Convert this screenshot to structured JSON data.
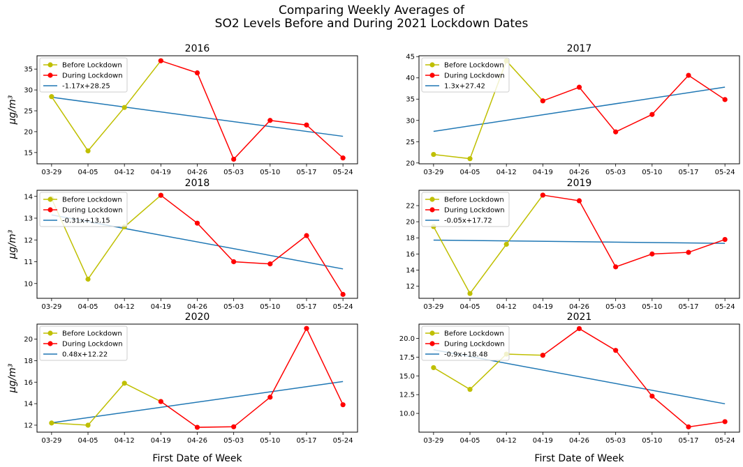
{
  "figure": {
    "suptitle_line1": "Comparing Weekly Averages of",
    "suptitle_line2": "SO2 Levels Before and During 2021 Lockdown Dates",
    "xlabel": "First Date of Week",
    "ylabel": "μg/m³"
  },
  "colors": {
    "before": "#bfbf00",
    "during": "#ff0000",
    "trend": "#1f77b4"
  },
  "chart_data": [
    {
      "type": "line",
      "title": "2016",
      "categories": [
        "03-29",
        "04-05",
        "04-12",
        "04-19",
        "04-26",
        "05-03",
        "05-10",
        "05-17",
        "05-24"
      ],
      "series": [
        {
          "name": "Before Lockdown",
          "x": [
            "03-29",
            "04-05",
            "04-12",
            "04-19"
          ],
          "values": [
            28.4,
            15.4,
            25.8,
            37.0
          ]
        },
        {
          "name": "During Lockdown",
          "x": [
            "04-19",
            "04-26",
            "05-03",
            "05-10",
            "05-17",
            "05-24"
          ],
          "values": [
            37.0,
            34.1,
            13.4,
            22.7,
            21.6,
            13.7
          ]
        },
        {
          "name": "-1.17x+28.25",
          "slope": -1.17,
          "intercept": 28.25
        }
      ],
      "ylim": [
        12.3,
        38.2
      ],
      "yticks": [
        15,
        20,
        25,
        30,
        35
      ],
      "ytick_labels": [
        "15",
        "20",
        "25",
        "30",
        "35"
      ],
      "legend": "upper left",
      "grid": false
    },
    {
      "type": "line",
      "title": "2017",
      "categories": [
        "03-29",
        "04-05",
        "04-12",
        "04-19",
        "04-26",
        "05-03",
        "05-10",
        "05-17",
        "05-24"
      ],
      "series": [
        {
          "name": "Before Lockdown",
          "x": [
            "03-29",
            "04-05",
            "04-12",
            "04-19"
          ],
          "values": [
            22.0,
            21.0,
            44.0,
            34.6
          ]
        },
        {
          "name": "During Lockdown",
          "x": [
            "04-19",
            "04-26",
            "05-03",
            "05-10",
            "05-17",
            "05-24"
          ],
          "values": [
            34.6,
            37.8,
            27.3,
            31.4,
            40.6,
            34.9
          ]
        },
        {
          "name": "1.3x+27.42",
          "slope": 1.3,
          "intercept": 27.42
        }
      ],
      "ylim": [
        19.8,
        45.2
      ],
      "yticks": [
        20,
        25,
        30,
        35,
        40,
        45
      ],
      "ytick_labels": [
        "20",
        "25",
        "30",
        "35",
        "40",
        "45"
      ],
      "legend": "upper left",
      "grid": false
    },
    {
      "type": "line",
      "title": "2018",
      "categories": [
        "03-29",
        "04-05",
        "04-12",
        "04-19",
        "04-26",
        "05-03",
        "05-10",
        "05-17",
        "05-24"
      ],
      "series": [
        {
          "name": "Before Lockdown",
          "x": [
            "03-29",
            "04-05",
            "04-12",
            "04-19"
          ],
          "values": [
            13.9,
            10.2,
            12.6,
            14.05
          ]
        },
        {
          "name": "During Lockdown",
          "x": [
            "04-19",
            "04-26",
            "05-03",
            "05-10",
            "05-17",
            "05-24"
          ],
          "values": [
            14.05,
            12.77,
            11.0,
            10.9,
            12.2,
            9.5
          ]
        },
        {
          "name": "-0.31x+13.15",
          "slope": -0.31,
          "intercept": 13.15
        }
      ],
      "ylim": [
        9.32,
        14.28
      ],
      "yticks": [
        10,
        11,
        12,
        13,
        14
      ],
      "ytick_labels": [
        "10",
        "11",
        "12",
        "13",
        "14"
      ],
      "legend": "upper left",
      "grid": false
    },
    {
      "type": "line",
      "title": "2019",
      "categories": [
        "03-29",
        "04-05",
        "04-12",
        "04-19",
        "04-26",
        "05-03",
        "05-10",
        "05-17",
        "05-24"
      ],
      "series": [
        {
          "name": "Before Lockdown",
          "x": [
            "03-29",
            "04-05",
            "04-12",
            "04-19"
          ],
          "values": [
            19.4,
            11.1,
            17.2,
            23.3
          ]
        },
        {
          "name": "During Lockdown",
          "x": [
            "04-19",
            "04-26",
            "05-03",
            "05-10",
            "05-17",
            "05-24"
          ],
          "values": [
            23.3,
            22.6,
            14.4,
            16.0,
            16.2,
            17.8
          ]
        },
        {
          "name": "-0.05x+17.72",
          "slope": -0.05,
          "intercept": 17.72
        }
      ],
      "ylim": [
        10.5,
        23.9
      ],
      "yticks": [
        12,
        14,
        16,
        18,
        20,
        22
      ],
      "ytick_labels": [
        "12",
        "14",
        "16",
        "18",
        "20",
        "22"
      ],
      "legend": "upper left",
      "grid": false
    },
    {
      "type": "line",
      "title": "2020",
      "categories": [
        "03-29",
        "04-05",
        "04-12",
        "04-19",
        "04-26",
        "05-03",
        "05-10",
        "05-17",
        "05-24"
      ],
      "series": [
        {
          "name": "Before Lockdown",
          "x": [
            "03-29",
            "04-05",
            "04-12",
            "04-19"
          ],
          "values": [
            12.2,
            12.0,
            15.9,
            14.2
          ]
        },
        {
          "name": "During Lockdown",
          "x": [
            "04-19",
            "04-26",
            "05-03",
            "05-10",
            "05-17",
            "05-24"
          ],
          "values": [
            14.2,
            11.8,
            11.85,
            14.6,
            21.0,
            13.9
          ]
        },
        {
          "name": "0.48x+12.22",
          "slope": 0.48,
          "intercept": 12.22
        }
      ],
      "ylim": [
        11.35,
        21.4
      ],
      "yticks": [
        12,
        14,
        16,
        18,
        20
      ],
      "ytick_labels": [
        "12",
        "14",
        "16",
        "18",
        "20"
      ],
      "legend": "upper left",
      "grid": false
    },
    {
      "type": "line",
      "title": "2021",
      "categories": [
        "03-29",
        "04-05",
        "04-12",
        "04-19",
        "04-26",
        "05-03",
        "05-10",
        "05-17",
        "05-24"
      ],
      "series": [
        {
          "name": "Before Lockdown",
          "x": [
            "03-29",
            "04-05",
            "04-12",
            "04-19"
          ],
          "values": [
            16.1,
            13.2,
            17.9,
            17.75
          ]
        },
        {
          "name": "During Lockdown",
          "x": [
            "04-19",
            "04-26",
            "05-03",
            "05-10",
            "05-17",
            "05-24"
          ],
          "values": [
            17.75,
            21.3,
            18.4,
            12.3,
            8.2,
            8.9
          ]
        },
        {
          "name": "-0.9x+18.48",
          "slope": -0.9,
          "intercept": 18.48
        }
      ],
      "ylim": [
        7.5,
        21.9
      ],
      "yticks": [
        10,
        12.5,
        15,
        17.5,
        20
      ],
      "ytick_labels": [
        "10.0",
        "12.5",
        "15.0",
        "17.5",
        "20.0"
      ],
      "legend": "upper left",
      "grid": false
    }
  ]
}
